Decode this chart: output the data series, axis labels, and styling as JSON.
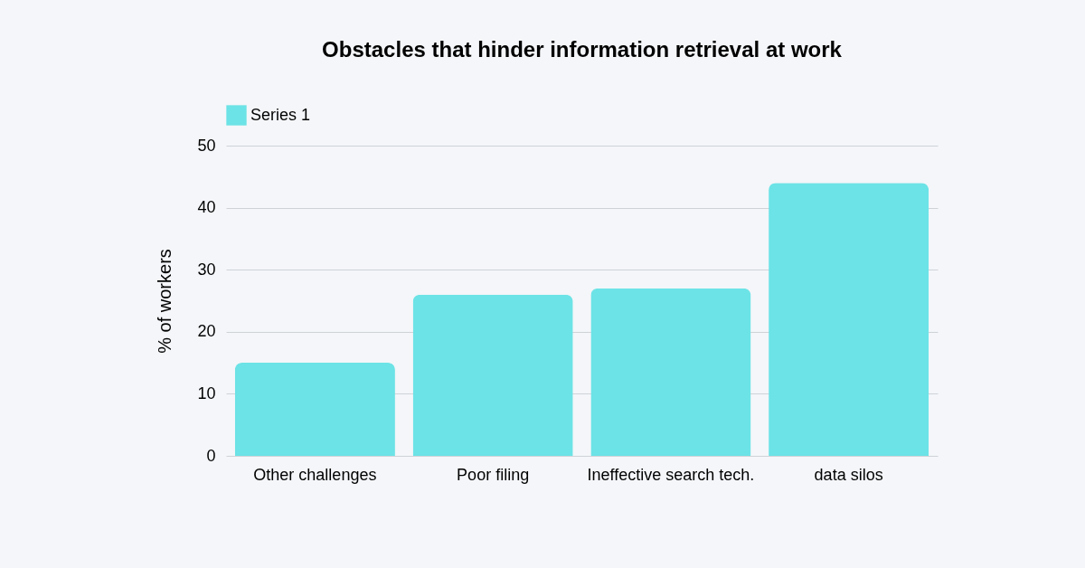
{
  "chart_data": {
    "type": "bar",
    "title": "Obstacles that hinder information retrieval at work",
    "ylabel": "% of workers",
    "categories": [
      "Other challenges",
      "Poor filing",
      "Ineffective search tech.",
      "data silos"
    ],
    "series": [
      {
        "name": "Series 1",
        "color": "#6ce3e6",
        "values": [
          15,
          26,
          27,
          44
        ]
      }
    ],
    "ylim": [
      0,
      50
    ],
    "yticks": [
      0,
      10,
      20,
      30,
      40,
      50
    ],
    "grid": "y",
    "legend": "top"
  }
}
